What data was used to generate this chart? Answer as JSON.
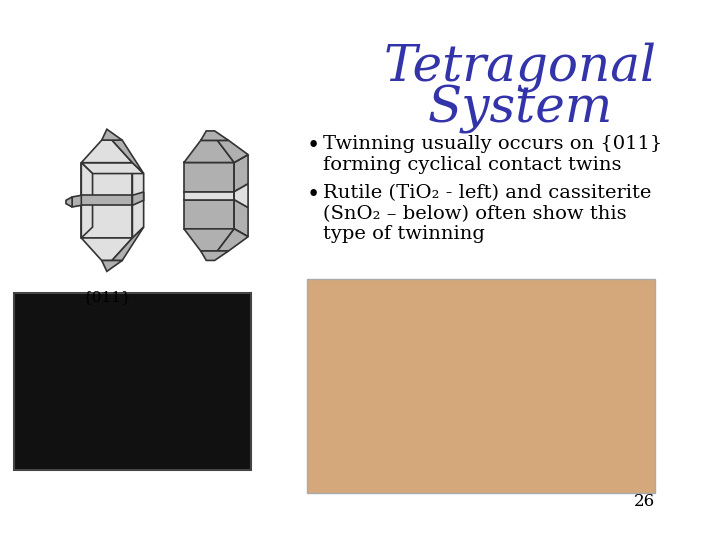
{
  "title_line1": "Tetragonal",
  "title_line2": "System",
  "title_color": "#3333aa",
  "title_fontsize": 36,
  "bullet1_line1": "Twinning usually occurs on {011}",
  "bullet1_line2": "forming cyclical contact twins",
  "bullet2_line1": "Rutile (TiO₂ - left) and cassiterite",
  "bullet2_line2": "(SnO₂ – below) often show this",
  "bullet2_line3": "type of twinning",
  "label_011": "{011}",
  "page_number": "26",
  "bg_color": "#ffffff",
  "text_color": "#000000",
  "bullet_fontsize": 14,
  "label_fontsize": 11,
  "photo1_color": "#111111",
  "photo2_color": "#d4a87a",
  "crystal_gray_light": "#e0e0e0",
  "crystal_gray_mid": "#b0b0b0",
  "crystal_edge": "#333333"
}
